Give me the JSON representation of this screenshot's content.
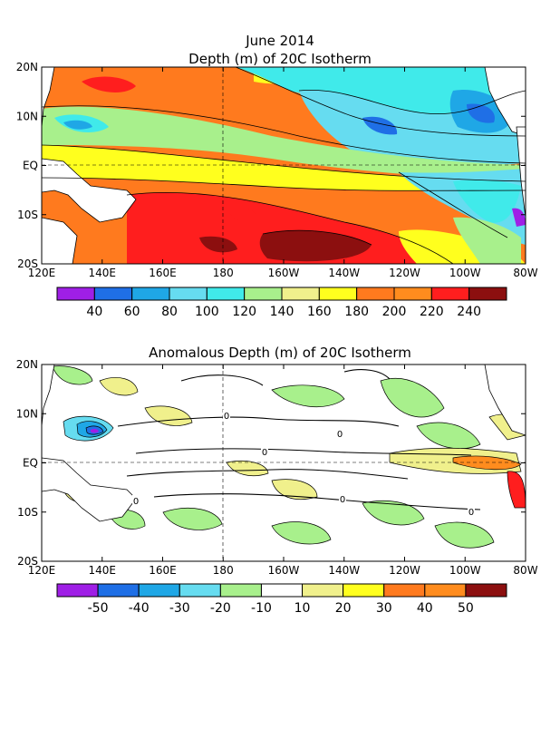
{
  "header": {
    "title": "June 2014",
    "panel1_title": "Depth (m) of 20C Isotherm",
    "panel2_title": "Anomalous Depth (m) of 20C Isotherm"
  },
  "chart_data": [
    {
      "type": "heatmap",
      "title": "Depth (m) of 20C Isotherm",
      "x_ticks": [
        "120E",
        "140E",
        "160E",
        "180",
        "160W",
        "140W",
        "120W",
        "100W",
        "80W"
      ],
      "y_ticks": [
        "20N",
        "10N",
        "EQ",
        "10S",
        "20S"
      ],
      "xlim": [
        120,
        280
      ],
      "ylim": [
        -20,
        20
      ],
      "grid": true,
      "colorbar": {
        "levels": [
          40,
          60,
          80,
          100,
          120,
          140,
          160,
          180,
          200,
          220,
          240
        ],
        "labels": [
          "40",
          "60",
          "80",
          "100",
          "120",
          "140",
          "160",
          "180",
          "200",
          "220",
          "240"
        ],
        "colors": [
          "#9f1fe6",
          "#1f6fe6",
          "#1fa7e6",
          "#66dcf0",
          "#40eaea",
          "#a8f08c",
          "#f0f08c",
          "#ffff1e",
          "#ff7a1e",
          "#ff8c1e",
          "#ff1e1e",
          "#8c0f0f"
        ]
      }
    },
    {
      "type": "heatmap",
      "title": "Anomalous Depth (m) of 20C Isotherm",
      "x_ticks": [
        "120E",
        "140E",
        "160E",
        "180",
        "160W",
        "140W",
        "120W",
        "100W",
        "80W"
      ],
      "y_ticks": [
        "20N",
        "10N",
        "EQ",
        "10S",
        "20S"
      ],
      "xlim": [
        120,
        280
      ],
      "ylim": [
        -20,
        20
      ],
      "grid": true,
      "contour_labels": [
        "0"
      ],
      "colorbar": {
        "levels": [
          -50,
          -40,
          -30,
          -20,
          -10,
          10,
          20,
          30,
          40,
          50
        ],
        "labels": [
          "-50",
          "-40",
          "-30",
          "-20",
          "-10",
          "10",
          "20",
          "30",
          "40",
          "50"
        ],
        "colors": [
          "#9f1fe6",
          "#1f6fe6",
          "#1fa7e6",
          "#66dcf0",
          "#a8f08c",
          "#ffffff",
          "#f0f08c",
          "#ffff1e",
          "#ff7a1e",
          "#ff8c1e",
          "#8c0f0f"
        ]
      }
    }
  ]
}
